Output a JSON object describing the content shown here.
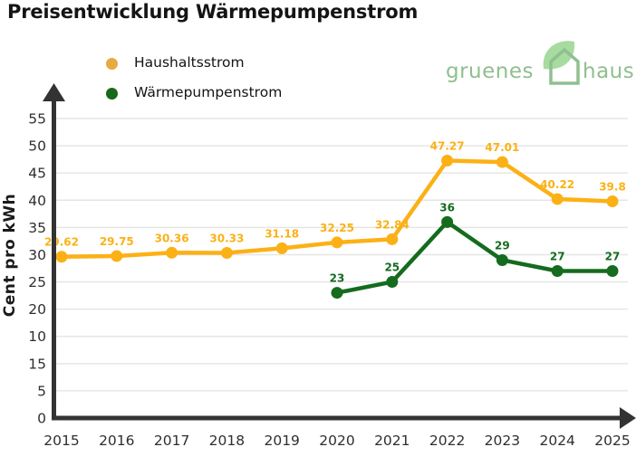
{
  "title": "Preisentwicklung Wärmepumpenstrom",
  "legend": [
    {
      "label": "Haushaltsstrom",
      "color": "#E9A940"
    },
    {
      "label": "Wärmepumpenstrom",
      "color": "#17691C"
    }
  ],
  "logo": {
    "word1": "gruenes",
    "word2": "haus",
    "text_color": "#8FBF8E",
    "leaf_color": "#A7DBA0",
    "house_color": "#90BF90"
  },
  "chart_data": {
    "type": "line",
    "title": "Preisentwicklung Wärmepumpenstrom",
    "xlabel": "",
    "ylabel": "Cent pro kWh",
    "ylim": [
      0,
      55
    ],
    "grid": true,
    "legend_position": "top-left",
    "x": [
      "2015",
      "2016",
      "2017",
      "2018",
      "2019",
      "2020",
      "2021",
      "2022",
      "2023",
      "2024",
      "2025"
    ],
    "y_ticks_top_to_bottom": [
      "55",
      "50",
      "45",
      "40",
      "35",
      "30",
      "25",
      "20",
      "10",
      "15",
      "5",
      "0"
    ],
    "series": [
      {
        "name": "Haushaltsstrom",
        "slug": "haushaltsstrom",
        "color": "#FBB116",
        "values": [
          29.62,
          29.75,
          30.36,
          30.33,
          31.18,
          32.25,
          32.84,
          47.27,
          47.01,
          40.22,
          39.8
        ],
        "labels": [
          "29.62",
          "29.75",
          "30.36",
          "30.33",
          "31.18",
          "32.25",
          "32.84",
          "47.27",
          "47.01",
          "40.22",
          "39.8"
        ]
      },
      {
        "name": "Wärmepumpenstrom",
        "slug": "waermepumpenstrom",
        "color": "#156B1E",
        "values": [
          null,
          null,
          null,
          null,
          null,
          23,
          25,
          36,
          29,
          27,
          27
        ],
        "labels": [
          "23",
          "25",
          "36",
          "29",
          "27",
          "27"
        ]
      }
    ],
    "colors": {
      "axis": "#333333",
      "grid": "#E6E6E6",
      "tick": "#2F2F2F"
    }
  }
}
